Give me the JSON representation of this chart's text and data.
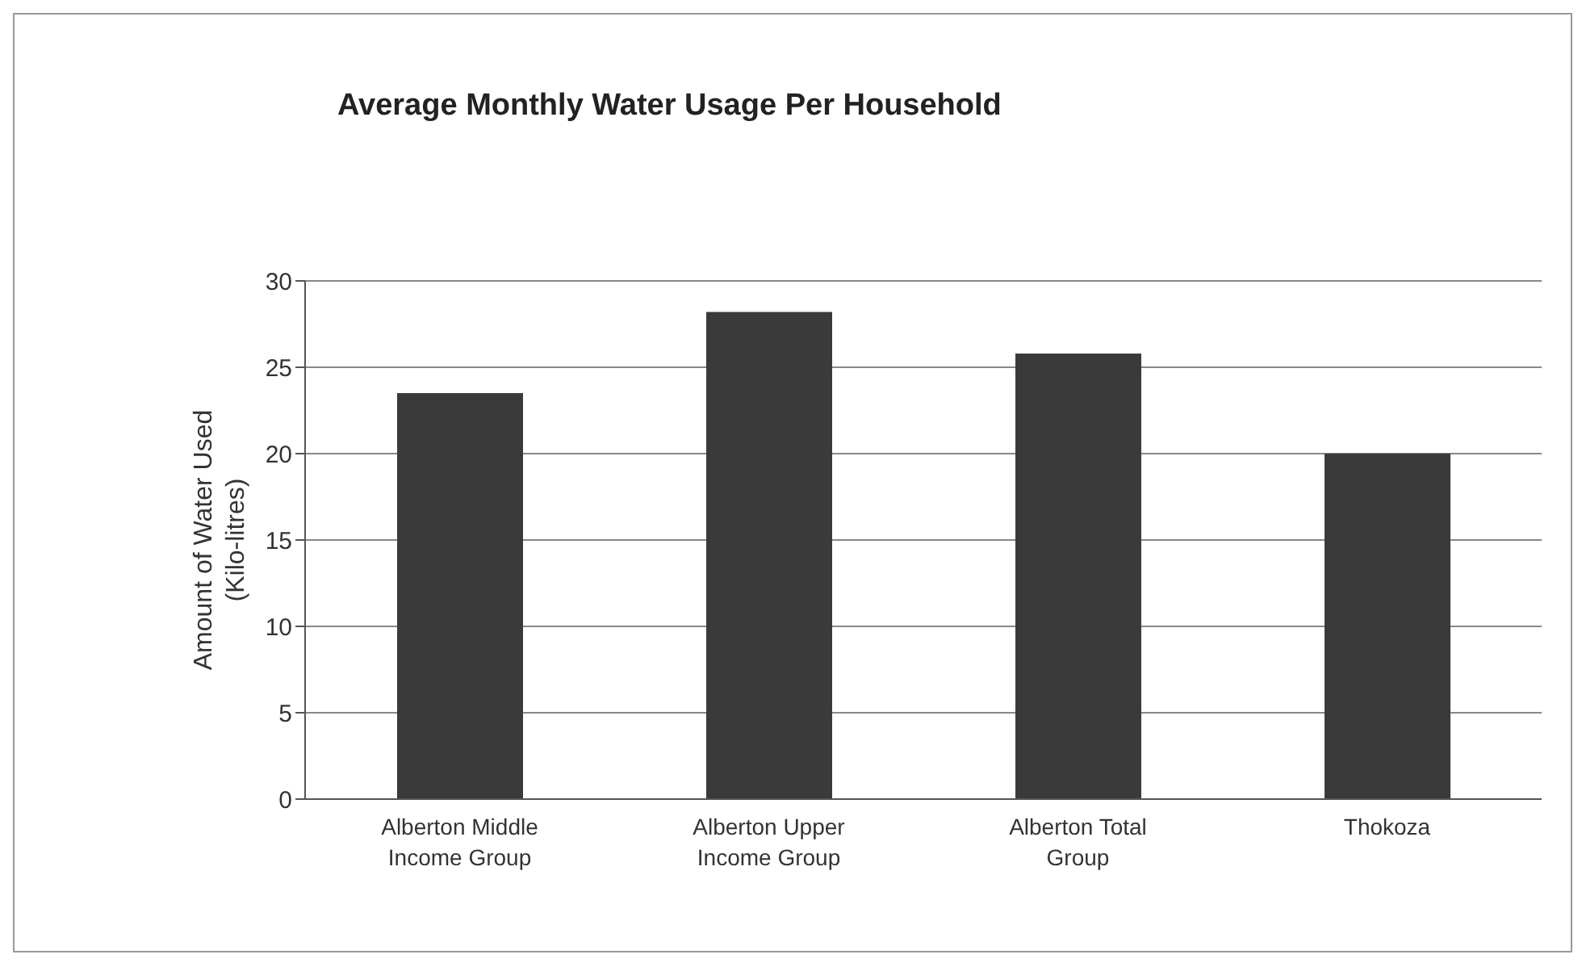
{
  "chart_data": {
    "type": "bar",
    "title": "Average Monthly Water Usage Per Household",
    "ylabel": "Amount of Water Used (Kilo-litres)",
    "categories": [
      "Alberton Middle Income Group",
      "Alberton Upper Income Group",
      "Alberton Total Group",
      "Thokoza"
    ],
    "values": [
      23.5,
      28.2,
      25.8,
      20
    ],
    "color": "#3a3a3a",
    "ylim": [
      0,
      30
    ],
    "yticks": [
      0,
      5,
      10,
      15,
      20,
      25,
      30
    ],
    "grid": "y"
  }
}
